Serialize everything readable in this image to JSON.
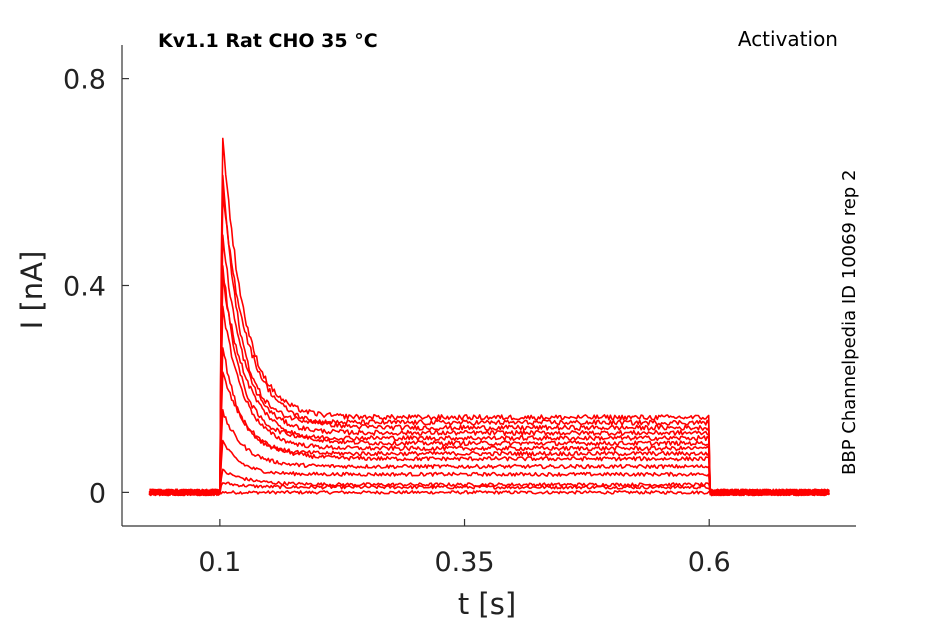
{
  "chart_data": {
    "type": "line",
    "title_left": "Kv1.1  Rat  CHO  35 °C",
    "title_right": "Activation",
    "side_note": "BBP Channelpedia ID 10069 rep 2",
    "xlabel": "t [s]",
    "ylabel": "I [nA]",
    "xlim": [
      0.0,
      0.75
    ],
    "ylim": [
      -0.065,
      0.865
    ],
    "xticks": [
      0.1,
      0.35,
      0.6
    ],
    "xtick_labels": [
      "0.1",
      "0.35",
      "0.6"
    ],
    "yticks": [
      0,
      0.4,
      0.8
    ],
    "ytick_labels": [
      "0",
      "0.4",
      "0.8"
    ],
    "trace_color": "#ff0000",
    "grid": false,
    "stimulus": {
      "t_on": 0.1,
      "t_off": 0.6,
      "t_start": 0.028,
      "t_end": 0.723
    },
    "series": [
      {
        "peak": 0.0,
        "plateau": 0.0
      },
      {
        "peak": 0.02,
        "plateau": 0.01
      },
      {
        "peak": 0.045,
        "plateau": 0.015
      },
      {
        "peak": 0.11,
        "plateau": 0.035
      },
      {
        "peak": 0.17,
        "plateau": 0.05
      },
      {
        "peak": 0.25,
        "plateau": 0.065
      },
      {
        "peak": 0.32,
        "plateau": 0.075
      },
      {
        "peak": 0.4,
        "plateau": 0.085
      },
      {
        "peak": 0.45,
        "plateau": 0.095
      },
      {
        "peak": 0.5,
        "plateau": 0.105
      },
      {
        "peak": 0.55,
        "plateau": 0.115
      },
      {
        "peak": 0.63,
        "plateau": 0.125
      },
      {
        "peak": 0.7,
        "plateau": 0.135
      },
      {
        "peak": 0.77,
        "plateau": 0.145
      }
    ]
  }
}
